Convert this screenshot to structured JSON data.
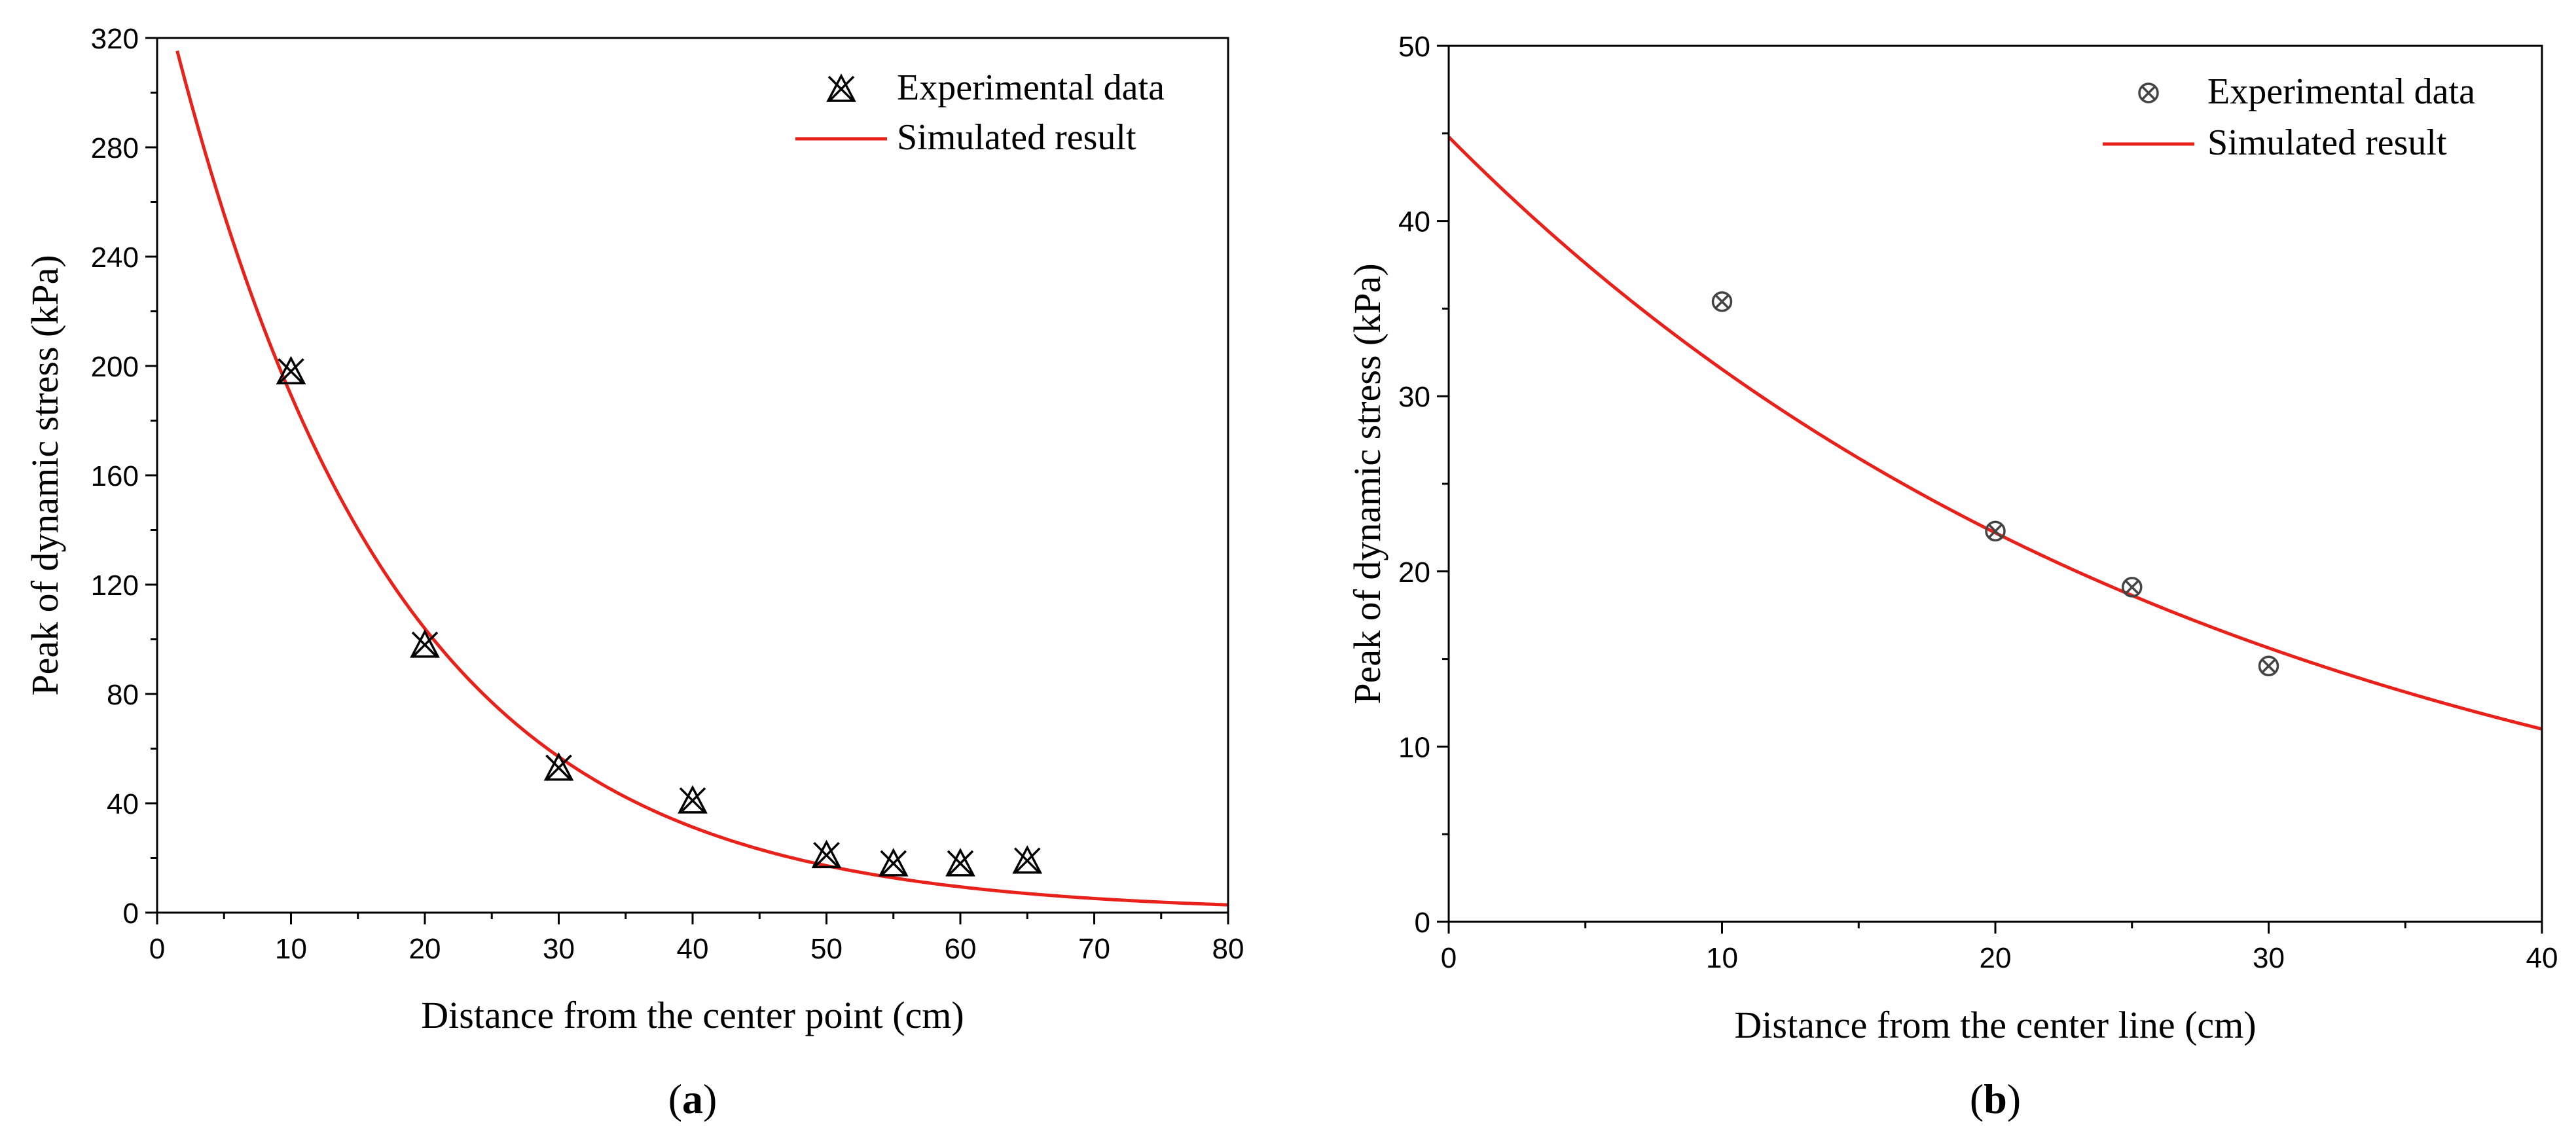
{
  "chart_data": [
    {
      "type": "scatter",
      "panel": "a",
      "caption_open": "(",
      "caption_letter": "a",
      "caption_close": ")",
      "xlabel": "Distance from the center point (cm)",
      "ylabel": "Peak of dynamic stress (kPa)",
      "xlim": [
        0,
        80
      ],
      "ylim": [
        0,
        320
      ],
      "xticks": [
        "0",
        "10",
        "20",
        "30",
        "40",
        "50",
        "60",
        "70",
        "80"
      ],
      "yticks": [
        "0",
        "40",
        "80",
        "120",
        "160",
        "200",
        "240",
        "280",
        "320"
      ],
      "marker": "x-triangle",
      "legend_position": "top-right",
      "series": [
        {
          "name": "Experimental data",
          "kind": "scatter",
          "x": [
            10,
            20,
            30,
            40,
            50,
            55,
            60,
            65
          ],
          "y": [
            198,
            98,
            53,
            41,
            21,
            18,
            18,
            19
          ]
        },
        {
          "name": "Simulated result",
          "kind": "line",
          "color": "#e8211a",
          "model": {
            "a": 345,
            "b": 0.06,
            "xmin": 1.5,
            "xmax": 80
          }
        }
      ]
    },
    {
      "type": "scatter",
      "panel": "b",
      "caption_open": "(",
      "caption_letter": "b",
      "caption_close": ")",
      "xlabel": "Distance from the center line (cm)",
      "ylabel": "Peak of dynamic stress (kPa)",
      "xlim": [
        0,
        40
      ],
      "ylim": [
        0,
        50
      ],
      "xticks": [
        "0",
        "10",
        "20",
        "30",
        "40"
      ],
      "yticks": [
        "0",
        "10",
        "20",
        "30",
        "40",
        "50"
      ],
      "marker": "circle-x",
      "legend_position": "top-right",
      "series": [
        {
          "name": "Experimental data",
          "kind": "scatter",
          "x": [
            10,
            20,
            25,
            30
          ],
          "y": [
            35.4,
            22.3,
            19.1,
            14.6
          ]
        },
        {
          "name": "Simulated result",
          "kind": "line",
          "color": "#e8211a",
          "model": {
            "a": 44.8,
            "b": 0.0351,
            "xmin": 0,
            "xmax": 40
          }
        }
      ]
    }
  ]
}
